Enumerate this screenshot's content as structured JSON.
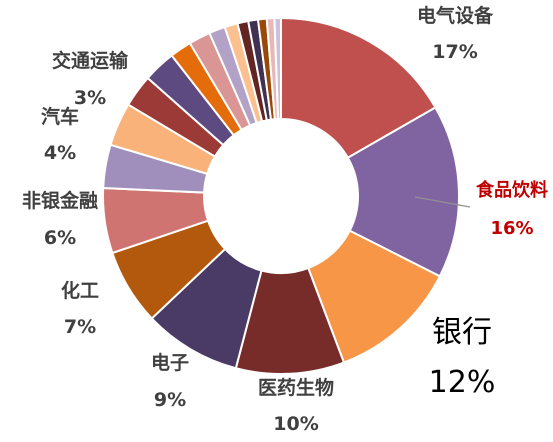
{
  "chart_data": {
    "type": "pie",
    "variant": "donut",
    "title": "",
    "slices": [
      {
        "name": "电气设备",
        "value": 17,
        "label": "17%",
        "color": "#c0504d"
      },
      {
        "name": "食品饮料",
        "value": 16,
        "label": "16%",
        "color": "#8064a2"
      },
      {
        "name": "银行",
        "value": 12,
        "label": "12%",
        "color": "#f79646"
      },
      {
        "name": "医药生物",
        "value": 10,
        "label": "10%",
        "color": "#772c2a"
      },
      {
        "name": "电子",
        "value": 9,
        "label": "9%",
        "color": "#4a3a66"
      },
      {
        "name": "化工",
        "value": 7,
        "label": "7%",
        "color": "#b3590d"
      },
      {
        "name": "非银金融",
        "value": 6,
        "label": "6%",
        "color": "#d07472"
      },
      {
        "name": "",
        "value": 4,
        "label": "",
        "color": "#a08fbd"
      },
      {
        "name": "汽车",
        "value": 4,
        "label": "4%",
        "color": "#f9b27a"
      },
      {
        "name": "",
        "value": 3,
        "label": "",
        "color": "#9b3a36"
      },
      {
        "name": "交通运输",
        "value": 3,
        "label": "3%",
        "color": "#5d4a80"
      },
      {
        "name": "",
        "value": 2,
        "label": "",
        "color": "#e46c0a"
      },
      {
        "name": "",
        "value": 2,
        "label": "",
        "color": "#d99694"
      },
      {
        "name": "",
        "value": 1.5,
        "label": "",
        "color": "#b3a2c7"
      },
      {
        "name": "",
        "value": 1.2,
        "label": "",
        "color": "#fac090"
      },
      {
        "name": "",
        "value": 1.0,
        "label": "",
        "color": "#632523"
      },
      {
        "name": "",
        "value": 0.9,
        "label": "",
        "color": "#3f3151"
      },
      {
        "name": "",
        "value": 0.8,
        "label": "",
        "color": "#984807"
      },
      {
        "name": "",
        "value": 0.7,
        "label": "",
        "color": "#e6b9b8"
      },
      {
        "name": "",
        "value": 0.6,
        "label": "",
        "color": "#ccc1da"
      }
    ],
    "highlight": "食品饮料"
  }
}
